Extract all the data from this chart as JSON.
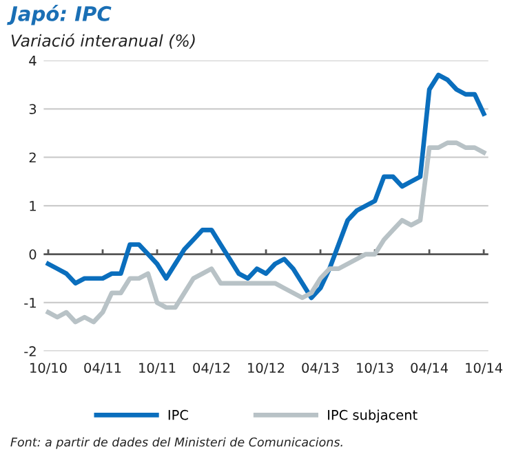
{
  "chart_data": {
    "type": "line",
    "title": "Japó: IPC",
    "subtitle": "Variació interanual (%)",
    "categories": [
      "10/10",
      null,
      null,
      null,
      null,
      null,
      "04/11",
      null,
      null,
      null,
      null,
      null,
      "10/11",
      null,
      null,
      null,
      null,
      null,
      "04/12",
      null,
      null,
      null,
      null,
      null,
      "10/12",
      null,
      null,
      null,
      null,
      null,
      "04/13",
      null,
      null,
      null,
      null,
      null,
      "10/13",
      null,
      null,
      null,
      null,
      null,
      "04/14",
      null,
      null,
      null,
      null,
      null,
      "10/14"
    ],
    "series": [
      {
        "name": "IPC",
        "color": "#0a6ebd",
        "values": [
          -0.2,
          -0.3,
          -0.4,
          -0.6,
          -0.5,
          -0.5,
          -0.5,
          -0.4,
          -0.4,
          0.2,
          0.2,
          0.0,
          -0.2,
          -0.5,
          -0.2,
          0.1,
          0.3,
          0.5,
          0.5,
          0.2,
          -0.1,
          -0.4,
          -0.5,
          -0.3,
          -0.4,
          -0.2,
          -0.1,
          -0.3,
          -0.6,
          -0.9,
          -0.7,
          -0.3,
          0.2,
          0.7,
          0.9,
          1.0,
          1.1,
          1.6,
          1.6,
          1.4,
          1.5,
          1.6,
          3.4,
          3.7,
          3.6,
          3.4,
          3.3,
          3.3,
          2.9
        ]
      },
      {
        "name": "IPC subjacent",
        "color": "#b8c2c6",
        "values": [
          -1.2,
          -1.3,
          -1.2,
          -1.4,
          -1.3,
          -1.4,
          -1.2,
          -0.8,
          -0.8,
          -0.5,
          -0.5,
          -0.4,
          -1.0,
          -1.1,
          -1.1,
          -0.8,
          -0.5,
          -0.4,
          -0.3,
          -0.6,
          -0.6,
          -0.6,
          -0.6,
          -0.6,
          -0.6,
          -0.6,
          -0.7,
          -0.8,
          -0.9,
          -0.8,
          -0.5,
          -0.3,
          -0.3,
          -0.2,
          -0.1,
          0.0,
          0.0,
          0.3,
          0.5,
          0.7,
          0.6,
          0.7,
          2.2,
          2.2,
          2.3,
          2.3,
          2.2,
          2.2,
          2.1
        ]
      }
    ],
    "ylim": [
      -2,
      4
    ],
    "yticks": [
      -2,
      -1,
      0,
      1,
      2,
      3,
      4
    ],
    "grid": "y",
    "legend": "bottom",
    "marker": "none",
    "line_style": "solid",
    "ref_lines": [
      {
        "axis": "y",
        "value": 0,
        "color": "#555555"
      }
    ],
    "annotations": [
      "Font: a partir de dades del Ministeri de Comunicacions."
    ]
  }
}
